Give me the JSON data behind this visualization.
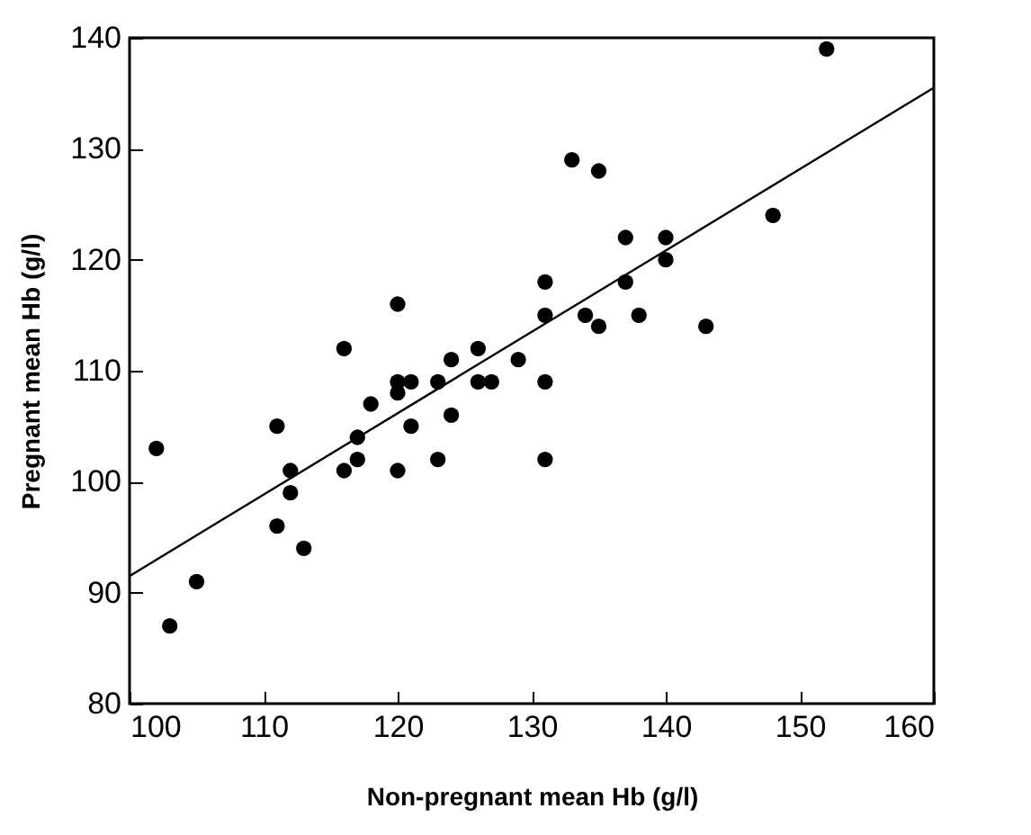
{
  "chart_data": {
    "type": "scatter",
    "xlabel": "Non-pregnant mean Hb (g/l)",
    "ylabel": "Pregnant mean Hb (g/l)",
    "xlim": [
      100,
      160
    ],
    "xticks": [
      100,
      110,
      120,
      130,
      140,
      150,
      160
    ],
    "ylim": [
      80,
      140
    ],
    "yticks": [
      80,
      90,
      100,
      110,
      120,
      130,
      140
    ],
    "grid": false,
    "series": [
      {
        "type": "scatter",
        "marker": "circle",
        "color": "#000000",
        "x": [
          102,
          103,
          105,
          111,
          111,
          112,
          112,
          113,
          116,
          116,
          117,
          117,
          118,
          120,
          120,
          120,
          120,
          121,
          121,
          123,
          123,
          124,
          124,
          126,
          126,
          127,
          129,
          131,
          131,
          131,
          131,
          133,
          134,
          135,
          135,
          137,
          137,
          138,
          140,
          140,
          143,
          148,
          152
        ],
        "values": [
          103,
          87,
          91,
          105,
          96,
          101,
          99,
          94,
          112,
          101,
          104,
          102,
          107,
          116,
          109,
          108,
          101,
          109,
          105,
          109,
          102,
          111,
          106,
          112,
          109,
          109,
          111,
          118,
          115,
          109,
          102,
          129,
          115,
          128,
          114,
          122,
          118,
          115,
          122,
          120,
          114,
          124,
          139
        ]
      },
      {
        "type": "line",
        "color": "#000000",
        "x": [
          100,
          160
        ],
        "values": [
          91.5,
          135.5
        ]
      }
    ]
  }
}
